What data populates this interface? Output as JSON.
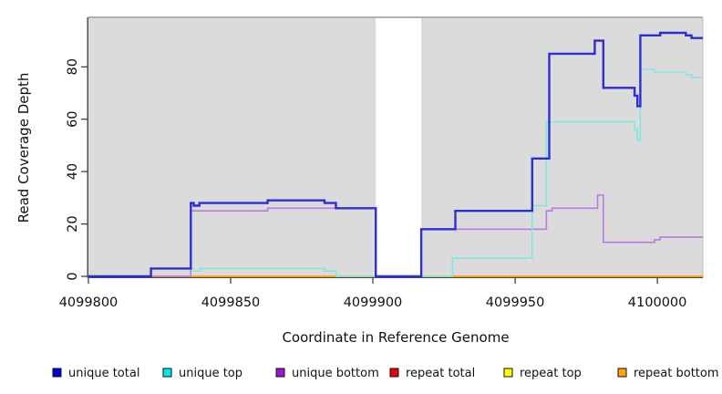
{
  "chart_data": {
    "type": "line",
    "subtype": "step-coverage-plot",
    "title": "",
    "xlabel": "Coordinate in Reference Genome",
    "ylabel": "Read Coverage Depth",
    "xlim": [
      4099800,
      4100016
    ],
    "ylim": [
      0,
      98.6
    ],
    "x_ticks": [
      {
        "value": 4099800,
        "label": "4099800"
      },
      {
        "value": 4099850,
        "label": "4099850"
      },
      {
        "value": 4099900,
        "label": "4099900"
      },
      {
        "value": 4099950,
        "label": "4099950"
      },
      {
        "value": 4100000,
        "label": "4100000"
      }
    ],
    "y_ticks": [
      {
        "value": 0,
        "label": "0"
      },
      {
        "value": 20,
        "label": "20"
      },
      {
        "value": 40,
        "label": "40"
      },
      {
        "value": 60,
        "label": "60"
      },
      {
        "value": 80,
        "label": "80"
      }
    ],
    "grid": false,
    "plot_bg": "#dbdbdb",
    "border_top_color": "#9a9a9a",
    "border_right_color": "#c4c4c4",
    "axis_color": "#333333",
    "mask_region": {
      "start": 4099901,
      "end": 4099917,
      "color": "#ffffff",
      "note": "no-data white gap"
    },
    "legend_position": "bottom",
    "series": [
      {
        "name": "unique total",
        "line_color": "#2d2dd6",
        "swatch_color": "#0000e0",
        "width": 2.4,
        "points": [
          [
            4099800,
            0
          ],
          [
            4099822,
            3
          ],
          [
            4099836,
            28
          ],
          [
            4099837,
            27
          ],
          [
            4099839,
            28
          ],
          [
            4099863,
            29
          ],
          [
            4099883,
            28
          ],
          [
            4099887,
            26
          ],
          [
            4099901,
            0
          ],
          [
            4099917,
            18
          ],
          [
            4099929,
            25
          ],
          [
            4099956,
            45
          ],
          [
            4099962,
            85
          ],
          [
            4099978,
            90
          ],
          [
            4099981,
            72
          ],
          [
            4099992,
            69
          ],
          [
            4099993,
            65
          ],
          [
            4099994,
            92
          ],
          [
            4100001,
            93
          ],
          [
            4100010,
            92
          ],
          [
            4100012,
            91
          ],
          [
            4100016,
            91
          ]
        ]
      },
      {
        "name": "unique top",
        "line_color": "#7fe9e1",
        "swatch_color": "#00e8e8",
        "width": 1.6,
        "points": [
          [
            4099800,
            0
          ],
          [
            4099822,
            3
          ],
          [
            4099837,
            2
          ],
          [
            4099839,
            3
          ],
          [
            4099883,
            2
          ],
          [
            4099887,
            0
          ],
          [
            4099928,
            7
          ],
          [
            4099956,
            27
          ],
          [
            4099961,
            59
          ],
          [
            4099992,
            56
          ],
          [
            4099993,
            52
          ],
          [
            4099994,
            79
          ],
          [
            4099999,
            78
          ],
          [
            4100010,
            77
          ],
          [
            4100012,
            76
          ],
          [
            4100016,
            76
          ]
        ]
      },
      {
        "name": "unique bottom",
        "line_color": "#b87cde",
        "swatch_color": "#9c17d3",
        "width": 1.6,
        "points": [
          [
            4099800,
            0
          ],
          [
            4099836,
            25
          ],
          [
            4099863,
            26
          ],
          [
            4099901,
            0
          ],
          [
            4099917,
            18
          ],
          [
            4099961,
            25
          ],
          [
            4099963,
            26
          ],
          [
            4099979,
            31
          ],
          [
            4099981,
            13
          ],
          [
            4099999,
            14
          ],
          [
            4100001,
            15
          ],
          [
            4100016,
            15
          ]
        ]
      },
      {
        "name": "repeat total",
        "line_color": "#d02020",
        "swatch_color": "#ee0000",
        "width": 1.4,
        "points": [
          [
            4099800,
            0
          ],
          [
            4100016,
            0
          ]
        ]
      },
      {
        "name": "repeat top",
        "line_color": "#f5e622",
        "swatch_color": "#ffff00",
        "width": 1.4,
        "points": [
          [
            4099800,
            0
          ],
          [
            4100016,
            0
          ]
        ]
      },
      {
        "name": "repeat bottom",
        "line_color": "#ffa410",
        "swatch_color": "#ffa500",
        "width": 1.8,
        "points": [
          [
            4099800,
            0
          ],
          [
            4100016,
            0
          ]
        ]
      }
    ],
    "render_order": [
      3,
      4,
      5,
      2,
      1,
      0
    ]
  }
}
